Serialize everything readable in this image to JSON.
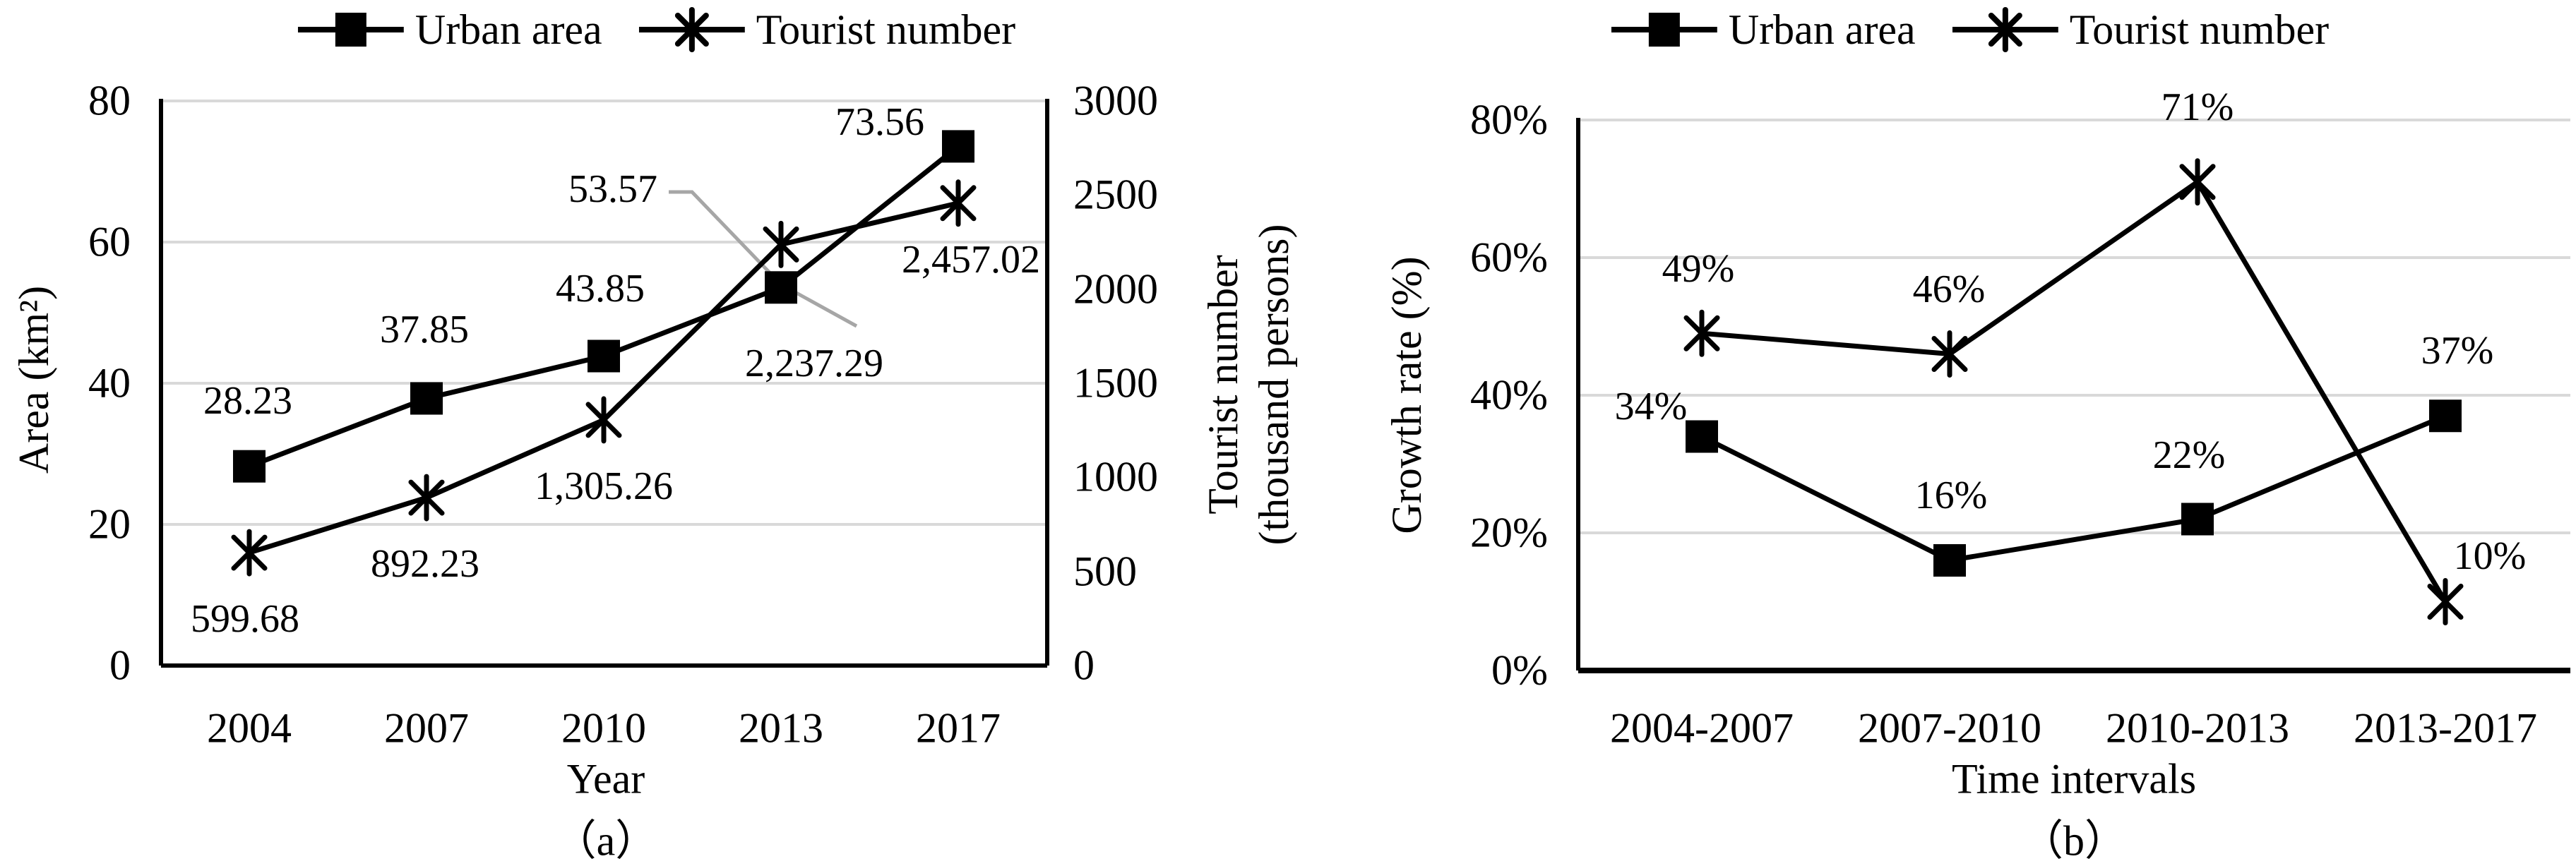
{
  "chart_data": [
    {
      "id": "a",
      "type": "line",
      "caption": "（a）",
      "legend": [
        "Urban area",
        "Tourist number"
      ],
      "x": {
        "title": "Year",
        "categories": [
          "2004",
          "2007",
          "2010",
          "2013",
          "2017"
        ]
      },
      "y_left": {
        "title": "Area (km²)",
        "range": [
          0,
          80
        ],
        "tick_labels": [
          "80",
          "60",
          "40",
          "20",
          "0"
        ]
      },
      "y_right": {
        "title_lines": [
          "Tourist number",
          "(thousand persons)"
        ],
        "range": [
          0,
          3000
        ],
        "tick_labels": [
          "3000",
          "2500",
          "2000",
          "1500",
          "1000",
          "500",
          "0"
        ]
      },
      "series": [
        {
          "name": "Urban area",
          "marker": "square",
          "axis": "left",
          "values": [
            28.23,
            37.85,
            43.85,
            53.57,
            73.56
          ],
          "data_labels": [
            "28.23",
            "37.85",
            "43.85",
            "53.57",
            "73.56"
          ]
        },
        {
          "name": "Tourist number",
          "marker": "asterisk",
          "axis": "right",
          "values": [
            599.68,
            892.23,
            1305.26,
            2237.29,
            2457.02
          ],
          "data_labels": [
            "599.68",
            "892.23",
            "1,305.26",
            "2,237.29",
            "2,457.02"
          ]
        }
      ],
      "grid": true,
      "legend_position": "top"
    },
    {
      "id": "b",
      "type": "line",
      "caption": "（b）",
      "legend": [
        "Urban area",
        "Tourist number"
      ],
      "x": {
        "title": "Time intervals",
        "categories": [
          "2004-2007",
          "2007-2010",
          "2010-2013",
          "2013-2017"
        ]
      },
      "y_left": {
        "title": "Growth rate (%)",
        "range": [
          0,
          0.8
        ],
        "tick_labels": [
          "80%",
          "60%",
          "40%",
          "20%",
          "0%"
        ]
      },
      "series": [
        {
          "name": "Urban area",
          "marker": "square",
          "axis": "left",
          "values": [
            0.34,
            0.16,
            0.22,
            0.37
          ],
          "data_labels": [
            "34%",
            "16%",
            "22%",
            "37%"
          ]
        },
        {
          "name": "Tourist number",
          "marker": "asterisk",
          "axis": "left",
          "values": [
            0.49,
            0.46,
            0.71,
            0.1
          ],
          "data_labels": [
            "49%",
            "46%",
            "71%",
            "10%"
          ]
        }
      ],
      "grid": true,
      "legend_position": "top"
    }
  ],
  "colors": {
    "series": "#000000",
    "gridline": "#d9d9d9",
    "leader_line": "#a6a6a6",
    "text": "#000000",
    "background": "#ffffff"
  }
}
